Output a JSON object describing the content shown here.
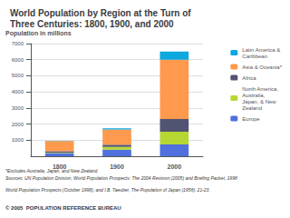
{
  "chart_data": {
    "type": "bar",
    "stacked": true,
    "title": "World Population by Region at the Turn of\nThree Centuries: 1800, 1900, and 2000",
    "ylabel": "Population in millions",
    "categories": [
      "1800",
      "1900",
      "2000"
    ],
    "series": [
      {
        "name": "Europe",
        "values": [
          195,
          408,
          729
        ]
      },
      {
        "name": "North America,\nAustralia,\nJapan, & New\nZealand",
        "values": [
          32,
          174,
          798
        ]
      },
      {
        "name": "Africa",
        "values": [
          90,
          133,
          784
        ]
      },
      {
        "name": "Asia & Oceania*",
        "values": [
          625,
          947,
          3680
        ]
      },
      {
        "name": "Latin America &\nCaribbean",
        "values": [
          24,
          74,
          519
        ]
      }
    ],
    "ylim": [
      0,
      7000
    ],
    "yticks": [
      1000,
      2000,
      3000,
      4000,
      5000,
      6000,
      7000
    ],
    "grid": true,
    "legend": "right",
    "annotations": [
      "*Excludes Australia, Japan, and New Zealand.",
      "Sources: UN Population Division, World Population Prospects: The 2004 Revision (2005) and Briefing Packet, 1998",
      "World Population Prospects (October 1998); and I.B. Taeuber, The Population of Japan (1958): 21-23.",
      "© 2005  POPULATION REFERENCE BUREAU"
    ]
  }
}
